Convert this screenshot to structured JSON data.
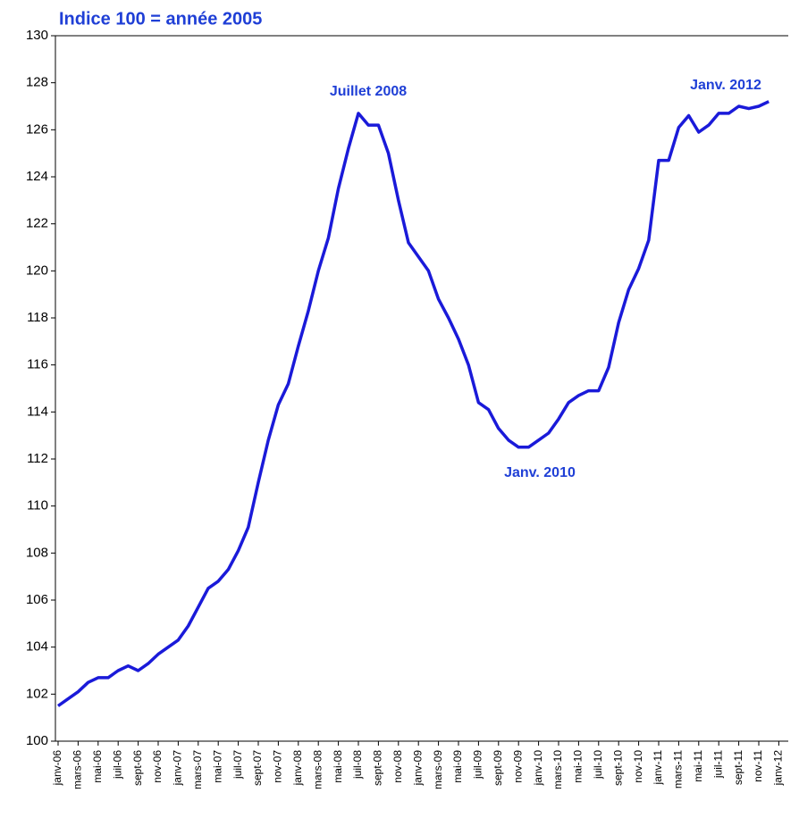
{
  "chart_data": {
    "type": "line",
    "ylabel": "Indice 100 = année 2005",
    "categories": [
      "janv-06",
      null,
      "mars-06",
      null,
      "mai-06",
      null,
      "juil-06",
      null,
      "sept-06",
      null,
      "nov-06",
      null,
      "janv-07",
      null,
      "mars-07",
      null,
      "mai-07",
      null,
      "juil-07",
      null,
      "sept-07",
      null,
      "nov-07",
      null,
      "janv-08",
      null,
      "mars-08",
      null,
      "mai-08",
      null,
      "juil-08",
      null,
      "sept-08",
      null,
      "nov-08",
      null,
      "janv-09",
      null,
      "mars-09",
      null,
      "mai-09",
      null,
      "juil-09",
      null,
      "sept-09",
      null,
      "nov-09",
      null,
      "janv-10",
      null,
      "mars-10",
      null,
      "mai-10",
      null,
      "juil-10",
      null,
      "sept-10",
      null,
      "nov-10",
      null,
      "janv-11",
      null,
      "mars-11",
      null,
      "mai-11",
      null,
      "juil-11",
      null,
      "sept-11",
      null,
      "nov-11",
      null,
      "janv-12"
    ],
    "series": [
      {
        "color": "#1a1ad9",
        "values": [
          101.5,
          101.8,
          102.1,
          102.5,
          102.7,
          102.7,
          103.0,
          103.2,
          103.0,
          103.3,
          103.7,
          104.0,
          104.3,
          104.9,
          105.7,
          106.5,
          106.8,
          107.3,
          108.1,
          109.1,
          111.0,
          112.8,
          114.3,
          115.2,
          116.8,
          118.3,
          120.0,
          121.4,
          123.5,
          125.2,
          126.7,
          126.2,
          126.2,
          125.0,
          123.0,
          121.2,
          120.6,
          120.0,
          118.8,
          118.0,
          117.1,
          116.0,
          114.4,
          114.1,
          113.3,
          112.8,
          112.5,
          112.5,
          112.8,
          113.1,
          113.7,
          114.4,
          114.7,
          114.9,
          114.9,
          115.9,
          117.8,
          119.2,
          120.1,
          121.3,
          124.7,
          124.7,
          126.1,
          126.6,
          125.9,
          126.2,
          126.7,
          126.7,
          127.0,
          126.9,
          127.0,
          127.2,
          null
        ]
      }
    ],
    "annotations": [
      "Juillet 2008",
      "Janv. 2010",
      "Janv. 2012"
    ],
    "ylim": [
      100,
      130
    ],
    "yticks": [
      100,
      102,
      104,
      106,
      108,
      110,
      112,
      114,
      116,
      118,
      120,
      122,
      124,
      126,
      128,
      130
    ],
    "grid": false
  }
}
